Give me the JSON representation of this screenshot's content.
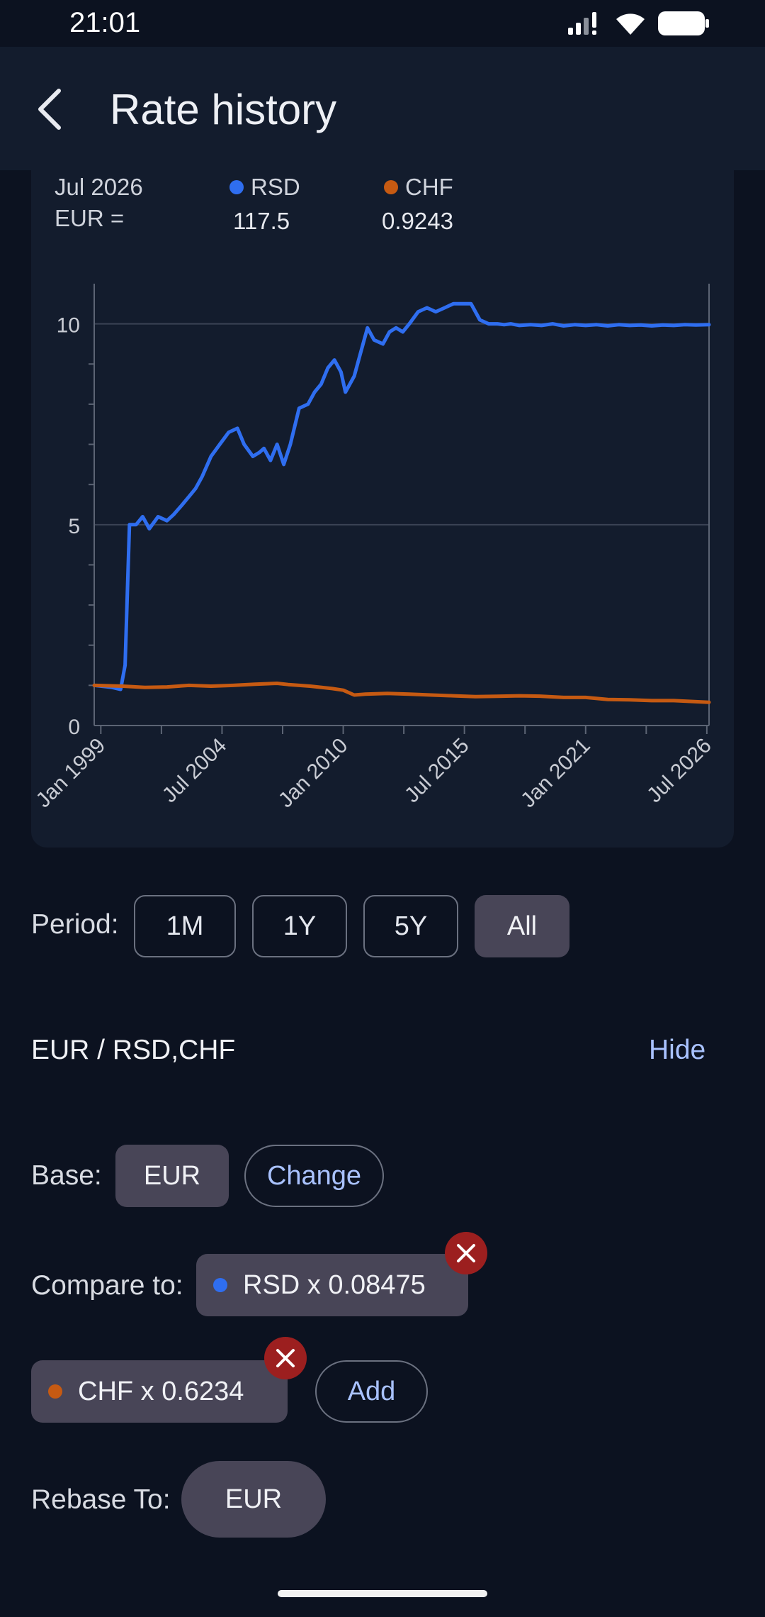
{
  "status_bar": {
    "time": "21:01"
  },
  "app_bar": {
    "title": "Rate history",
    "back_icon": "chevron-left-icon"
  },
  "chart_header": {
    "date": "Jul 2026",
    "base_text": "EUR =",
    "series": [
      {
        "name": "RSD",
        "value": "117.5",
        "color": "#2f6ef0"
      },
      {
        "name": "CHF",
        "value": "0.9243",
        "color": "#c65a12"
      }
    ]
  },
  "chart_data": {
    "type": "line",
    "xlabel": "",
    "ylabel": "",
    "x_tick_labels": [
      "Jan 1999",
      "Jul 2004",
      "Jan 2010",
      "Jul 2015",
      "Jan 2021",
      "Jul 2026"
    ],
    "x_range": [
      1998.7,
      2026.6
    ],
    "y_tick_labels": [
      "0",
      "5",
      "10"
    ],
    "ylim": [
      0,
      11
    ],
    "grid": true,
    "series": [
      {
        "name": "RSD",
        "color": "#2f6ef0",
        "x": [
          1998.7,
          1999.5,
          1999.9,
          2000.1,
          2000.3,
          2000.6,
          2000.9,
          2001.2,
          2001.6,
          2002.0,
          2002.3,
          2002.7,
          2003.0,
          2003.3,
          2003.6,
          2004.0,
          2004.4,
          2004.8,
          2005.2,
          2005.5,
          2005.9,
          2006.2,
          2006.4,
          2006.7,
          2007.0,
          2007.3,
          2007.6,
          2008.0,
          2008.4,
          2008.7,
          2009.0,
          2009.3,
          2009.6,
          2009.9,
          2010.1,
          2010.5,
          2010.8,
          2011.1,
          2011.4,
          2011.8,
          2012.1,
          2012.4,
          2012.7,
          2013.0,
          2013.4,
          2013.8,
          2014.2,
          2014.6,
          2015.0,
          2015.4,
          2015.8,
          2016.2,
          2016.6,
          2017.0,
          2017.3,
          2017.6,
          2018.0,
          2018.5,
          2019.0,
          2019.5,
          2020.0,
          2020.5,
          2021.0,
          2021.5,
          2022.0,
          2022.5,
          2023.0,
          2023.5,
          2024.0,
          2024.5,
          2025.0,
          2025.5,
          2026.0,
          2026.6
        ],
        "values": [
          1.0,
          0.95,
          0.9,
          1.5,
          5.0,
          5.0,
          5.2,
          4.9,
          5.2,
          5.1,
          5.25,
          5.5,
          5.7,
          5.9,
          6.2,
          6.7,
          7.0,
          7.3,
          7.4,
          7.0,
          6.7,
          6.8,
          6.9,
          6.6,
          7.0,
          6.5,
          7.0,
          7.9,
          8.0,
          8.3,
          8.5,
          8.9,
          9.1,
          8.8,
          8.3,
          8.7,
          9.3,
          9.9,
          9.6,
          9.5,
          9.8,
          9.9,
          9.8,
          10.0,
          10.3,
          10.4,
          10.3,
          10.4,
          10.5,
          10.5,
          10.5,
          10.1,
          10.0,
          10.0,
          9.98,
          10.0,
          9.96,
          9.98,
          9.96,
          10.0,
          9.95,
          9.98,
          9.96,
          9.98,
          9.95,
          9.98,
          9.96,
          9.97,
          9.95,
          9.97,
          9.96,
          9.98,
          9.97,
          9.98
        ]
      },
      {
        "name": "CHF",
        "color": "#c65a12",
        "x": [
          1998.7,
          2000.0,
          2001.0,
          2002.0,
          2003.0,
          2004.0,
          2005.0,
          2006.0,
          2007.0,
          2007.5,
          2008.5,
          2009.5,
          2010.0,
          2010.5,
          2011.0,
          2012.0,
          2013.0,
          2014.0,
          2015.0,
          2016.0,
          2017.0,
          2018.0,
          2019.0,
          2020.0,
          2021.0,
          2022.0,
          2023.0,
          2024.0,
          2025.0,
          2026.6
        ],
        "values": [
          1.0,
          0.98,
          0.95,
          0.96,
          1.0,
          0.98,
          1.0,
          1.03,
          1.05,
          1.02,
          0.98,
          0.92,
          0.88,
          0.76,
          0.78,
          0.8,
          0.78,
          0.76,
          0.74,
          0.72,
          0.73,
          0.74,
          0.73,
          0.7,
          0.7,
          0.65,
          0.64,
          0.62,
          0.62,
          0.58
        ]
      }
    ]
  },
  "period": {
    "label": "Period:",
    "options": [
      "1M",
      "1Y",
      "5Y",
      "All"
    ],
    "selected": "All"
  },
  "pair": {
    "title": "EUR / RSD,CHF",
    "hide_label": "Hide"
  },
  "base": {
    "label": "Base:",
    "value": "EUR",
    "change_label": "Change"
  },
  "compare": {
    "label": "Compare to:",
    "items": [
      {
        "text": "RSD x 0.08475",
        "color": "#2f6ef0"
      },
      {
        "text": "CHF x 0.6234",
        "color": "#c65a12"
      }
    ],
    "add_label": "Add",
    "remove_icon": "close-icon"
  },
  "rebase": {
    "label": "Rebase To:",
    "value": "EUR"
  }
}
